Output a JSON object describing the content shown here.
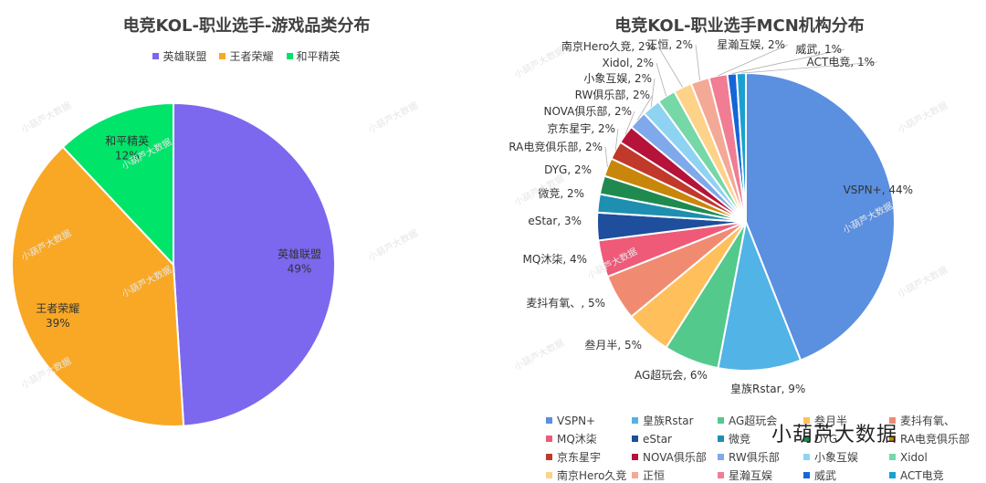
{
  "chart_data": [
    {
      "type": "pie",
      "title": "电竞KOL-职业选手-游戏品类分布",
      "legend_position": "top",
      "slices": [
        {
          "name": "英雄联盟",
          "value": 49,
          "label": "49%",
          "color": "#7B68EE"
        },
        {
          "name": "王者荣耀",
          "value": 39,
          "label": "39%",
          "color": "#F9A825"
        },
        {
          "name": "和平精英",
          "value": 12,
          "label": "12%",
          "color": "#00E46A"
        }
      ]
    },
    {
      "type": "pie",
      "title": "电竞KOL-职业选手MCN机构分布",
      "legend_position": "bottom",
      "slices": [
        {
          "name": "VSPN+",
          "value": 44,
          "label": "VSPN+, 44%",
          "color": "#5B8FE0"
        },
        {
          "name": "皇族Rstar",
          "value": 9,
          "label": "皇族Rstar, 9%",
          "color": "#52B3E6"
        },
        {
          "name": "AG超玩会",
          "value": 6,
          "label": "AG超玩会, 6%",
          "color": "#54C98C"
        },
        {
          "name": "叁月半",
          "value": 5,
          "label": "叁月半, 5%",
          "color": "#FFC05C"
        },
        {
          "name": "麦抖有氧、",
          "value": 5,
          "label": "麦抖有氧、, 5%",
          "color": "#F08B72"
        },
        {
          "name": "MQ沐柒",
          "value": 4,
          "label": "MQ沐柒, 4%",
          "color": "#EE5A78"
        },
        {
          "name": "eStar",
          "value": 3,
          "label": "eStar, 3%",
          "color": "#1E4E9C"
        },
        {
          "name": "微竞",
          "value": 2,
          "label": "微竞, 2%",
          "color": "#1E8FB0"
        },
        {
          "name": "DYG",
          "value": 2,
          "label": "DYG, 2%",
          "color": "#1F8A50"
        },
        {
          "name": "RA电竞俱乐部",
          "value": 2,
          "label": "RA电竞俱乐部, 2%",
          "color": "#C8860A"
        },
        {
          "name": "京东星宇",
          "value": 2,
          "label": "京东星宇, 2%",
          "color": "#C0392B"
        },
        {
          "name": "NOVA俱乐部",
          "value": 2,
          "label": "NOVA俱乐部, 2%",
          "color": "#B5133A"
        },
        {
          "name": "RW俱乐部",
          "value": 2,
          "label": "RW俱乐部, 2%",
          "color": "#7FA9EA"
        },
        {
          "name": "小象互娱",
          "value": 2,
          "label": "小象互娱, 2%",
          "color": "#8FD3F2"
        },
        {
          "name": "Xidol",
          "value": 2,
          "label": "Xidol, 2%",
          "color": "#76D7A7"
        },
        {
          "name": "南京Hero久竞",
          "value": 2,
          "label": "南京Hero久竞, 2%",
          "color": "#FFD28A"
        },
        {
          "name": "正恒",
          "value": 2,
          "label": "正恒, 2%",
          "color": "#F4A896"
        },
        {
          "name": "星瀚互娱",
          "value": 2,
          "label": "星瀚互娱, 2%",
          "color": "#F07D94"
        },
        {
          "name": "威武",
          "value": 1,
          "label": "威武, 1%",
          "color": "#1565D8"
        },
        {
          "name": "ACT电竞",
          "value": 1,
          "label": "ACT电竞, 1%",
          "color": "#1AA0D0"
        }
      ]
    }
  ],
  "brand_text": "小葫芦大数据",
  "watermark_text": "小葫芦大数据"
}
